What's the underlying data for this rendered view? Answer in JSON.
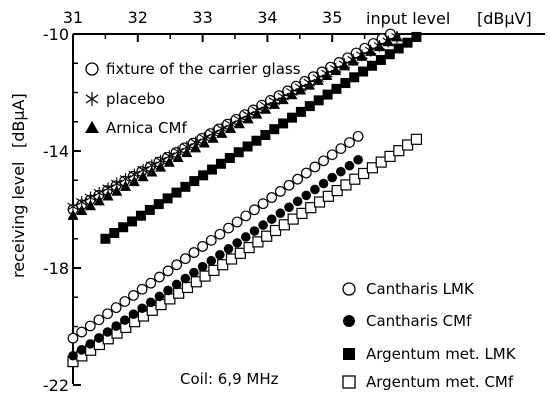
{
  "chart_data": {
    "type": "scatter",
    "xlabel": "input level",
    "xunit": "[dBµV]",
    "ylabel": "receiving level",
    "yunit": "[dBµA]",
    "xlim": [
      31,
      36.4
    ],
    "ylim": [
      -22,
      -10
    ],
    "x_ticks": [
      "31",
      "32",
      "33",
      "34",
      "35"
    ],
    "y_ticks": [
      "-10",
      "-14",
      "-18",
      "-22"
    ],
    "x_axis_position": "top",
    "grid": false,
    "annotation": "Coil: 6,9 MHz",
    "legend_left": [
      "fixture of the carrier glass",
      "placebo",
      "Arnica CMf"
    ],
    "legend_right": [
      "Cantharis LMK",
      "Cantharis CMf",
      "Argentum met. LMK",
      "Argentum met. CMf"
    ],
    "series": [
      {
        "name": "fixture of the carrier glass",
        "marker": "open-circle",
        "start": [
          31.0,
          -16.0
        ],
        "end": [
          35.9,
          -10.0
        ],
        "count": 38
      },
      {
        "name": "placebo",
        "marker": "asterisk",
        "start": [
          31.0,
          -15.9
        ],
        "end": [
          36.0,
          -10.1
        ],
        "count": 38
      },
      {
        "name": "Arnica CMf",
        "marker": "filled-triangle",
        "start": [
          31.0,
          -16.2
        ],
        "end": [
          36.0,
          -10.1
        ],
        "count": 38
      },
      {
        "name": "Cantharis LMK",
        "marker": "open-circle",
        "start": [
          31.0,
          -20.4
        ],
        "end": [
          35.4,
          -13.5
        ],
        "count": 34
      },
      {
        "name": "Cantharis CMf",
        "marker": "filled-circle",
        "start": [
          31.0,
          -21.0
        ],
        "end": [
          35.4,
          -14.3
        ],
        "count": 34
      },
      {
        "name": "Argentum met. LMK",
        "marker": "filled-square",
        "start": [
          31.5,
          -17.0
        ],
        "end": [
          36.3,
          -10.1
        ],
        "count": 36
      },
      {
        "name": "Argentum met. CMf",
        "marker": "open-square",
        "start": [
          31.0,
          -21.2
        ],
        "end": [
          36.3,
          -13.6
        ],
        "count": 40
      }
    ]
  }
}
